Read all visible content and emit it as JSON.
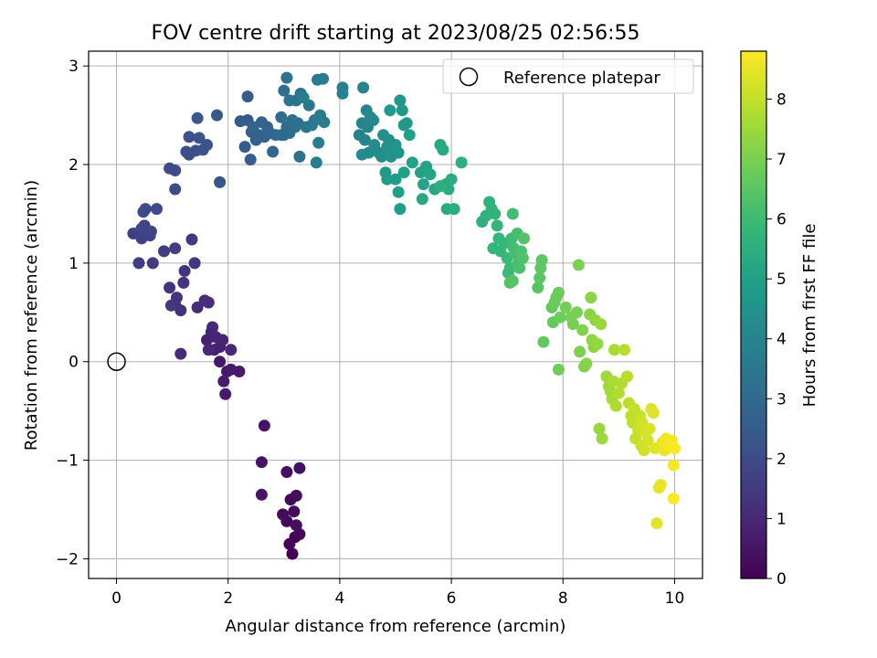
{
  "chart_data": {
    "type": "scatter",
    "title": "FOV centre drift starting at 2023/08/25 02:56:55",
    "xlabel": "Angular distance from reference (arcmin)",
    "ylabel": "Rotation from reference (arcmin)",
    "xlim": [
      -0.5,
      10.5
    ],
    "ylim": [
      -2.2,
      3.15
    ],
    "xticks": [
      0,
      2,
      4,
      6,
      8,
      10
    ],
    "yticks": [
      -2,
      -1,
      0,
      1,
      2,
      3
    ],
    "grid": true,
    "legend": {
      "position": "top-right",
      "entries": [
        "Reference platepar"
      ]
    },
    "reference_point": {
      "x": 0,
      "y": 0,
      "label": "Reference platepar"
    },
    "colorbar": {
      "label": "Hours from first FF file",
      "range": [
        0,
        8.8
      ],
      "ticks": [
        0,
        1,
        2,
        3,
        4,
        5,
        6,
        7,
        8
      ],
      "colormap": "viridis"
    },
    "series": [
      {
        "points": [
          [
            3.15,
            -1.95
          ],
          [
            3.2,
            -1.78
          ],
          [
            3.28,
            -1.75
          ],
          [
            3.1,
            -1.85
          ],
          [
            3.05,
            -1.62
          ],
          [
            3.18,
            -1.52
          ],
          [
            3.12,
            -1.4
          ],
          [
            3.22,
            -1.36
          ],
          [
            2.98,
            -1.55
          ],
          [
            3.22,
            -1.66
          ],
          [
            3.05,
            -1.12
          ],
          [
            3.28,
            -1.08
          ],
          [
            2.6,
            -1.02
          ],
          [
            2.65,
            -0.65
          ],
          [
            2.6,
            -1.35
          ],
          [
            1.85,
            0.0
          ],
          [
            1.98,
            -0.1
          ],
          [
            2.05,
            -0.08
          ],
          [
            2.2,
            -0.1
          ],
          [
            1.95,
            -0.33
          ],
          [
            1.92,
            -0.2
          ],
          [
            1.75,
            0.12
          ],
          [
            1.62,
            0.22
          ],
          [
            1.85,
            0.15
          ],
          [
            1.7,
            0.3
          ],
          [
            1.9,
            0.22
          ],
          [
            1.78,
            0.25
          ],
          [
            2.05,
            0.12
          ],
          [
            1.72,
            0.35
          ],
          [
            1.65,
            0.12
          ],
          [
            1.15,
            0.08
          ],
          [
            1.45,
            0.55
          ],
          [
            1.65,
            0.6
          ],
          [
            1.58,
            0.62
          ],
          [
            1.05,
            0.58
          ],
          [
            1.15,
            0.52
          ],
          [
            0.95,
            0.75
          ],
          [
            1.08,
            0.65
          ],
          [
            1.2,
            0.8
          ],
          [
            1.22,
            0.92
          ],
          [
            1.4,
            1.0
          ],
          [
            0.98,
            0.57
          ],
          [
            1.35,
            1.24
          ],
          [
            0.85,
            1.12
          ],
          [
            0.65,
            1.0
          ],
          [
            0.4,
            1.0
          ],
          [
            1.05,
            1.15
          ],
          [
            0.3,
            1.3
          ],
          [
            0.45,
            1.25
          ],
          [
            0.55,
            1.3
          ],
          [
            0.6,
            1.28
          ],
          [
            0.5,
            1.38
          ],
          [
            0.45,
            1.35
          ],
          [
            0.62,
            1.32
          ],
          [
            0.48,
            1.52
          ],
          [
            0.52,
            1.55
          ],
          [
            0.72,
            1.55
          ],
          [
            0.95,
            1.96
          ],
          [
            1.05,
            1.94
          ],
          [
            1.05,
            1.75
          ],
          [
            1.3,
            2.1
          ],
          [
            1.42,
            2.14
          ],
          [
            1.25,
            2.13
          ],
          [
            1.55,
            2.15
          ],
          [
            1.62,
            2.2
          ],
          [
            1.3,
            2.28
          ],
          [
            1.48,
            2.27
          ],
          [
            1.85,
            1.82
          ],
          [
            1.45,
            2.47
          ],
          [
            1.8,
            2.5
          ],
          [
            2.22,
            2.44
          ],
          [
            2.35,
            2.45
          ],
          [
            2.3,
            2.18
          ],
          [
            2.35,
            2.69
          ],
          [
            2.4,
            2.05
          ],
          [
            2.42,
            2.33
          ],
          [
            2.5,
            2.25
          ],
          [
            2.55,
            2.3
          ],
          [
            2.6,
            2.43
          ],
          [
            2.65,
            2.28
          ],
          [
            2.7,
            2.38
          ],
          [
            2.45,
            2.38
          ],
          [
            2.75,
            2.32
          ],
          [
            2.8,
            2.13
          ],
          [
            2.85,
            2.3
          ],
          [
            2.95,
            2.3
          ],
          [
            3.0,
            2.3
          ],
          [
            3.05,
            2.38
          ],
          [
            3.1,
            2.32
          ],
          [
            2.95,
            2.48
          ],
          [
            3.0,
            2.75
          ],
          [
            3.15,
            2.45
          ],
          [
            3.2,
            2.38
          ],
          [
            3.25,
            2.42
          ],
          [
            3.28,
            2.08
          ],
          [
            3.05,
            2.88
          ],
          [
            3.1,
            2.65
          ],
          [
            3.22,
            2.65
          ],
          [
            3.3,
            2.72
          ],
          [
            3.4,
            2.38
          ],
          [
            3.45,
            2.6
          ],
          [
            3.5,
            2.4
          ],
          [
            3.55,
            2.45
          ],
          [
            3.6,
            2.86
          ],
          [
            3.65,
            2.5
          ],
          [
            3.7,
            2.87
          ],
          [
            3.72,
            2.43
          ],
          [
            3.58,
            2.02
          ],
          [
            3.62,
            2.22
          ],
          [
            3.35,
            2.68
          ],
          [
            4.05,
            2.78
          ],
          [
            4.05,
            2.72
          ],
          [
            4.42,
            2.78
          ],
          [
            4.35,
            2.3
          ],
          [
            4.4,
            2.42
          ],
          [
            4.45,
            2.25
          ],
          [
            4.5,
            2.38
          ],
          [
            4.48,
            2.55
          ],
          [
            4.55,
            2.48
          ],
          [
            4.6,
            2.45
          ],
          [
            4.4,
            2.1
          ],
          [
            4.52,
            2.12
          ],
          [
            4.62,
            2.2
          ],
          [
            4.7,
            2.12
          ],
          [
            4.75,
            2.08
          ],
          [
            4.78,
            2.3
          ],
          [
            4.85,
            2.18
          ],
          [
            4.88,
            2.25
          ],
          [
            4.92,
            2.08
          ],
          [
            4.95,
            2.18
          ],
          [
            5.0,
            2.2
          ],
          [
            5.05,
            2.12
          ],
          [
            5.08,
            2.65
          ],
          [
            5.12,
            2.55
          ],
          [
            5.15,
            2.4
          ],
          [
            5.2,
            2.42
          ],
          [
            4.9,
            2.55
          ],
          [
            4.82,
            1.92
          ],
          [
            4.85,
            1.85
          ],
          [
            5.0,
            1.85
          ],
          [
            5.05,
            1.72
          ],
          [
            5.08,
            1.55
          ],
          [
            5.15,
            1.92
          ],
          [
            5.25,
            2.3
          ],
          [
            5.3,
            2.02
          ],
          [
            5.45,
            1.92
          ],
          [
            5.5,
            1.8
          ],
          [
            5.55,
            1.98
          ],
          [
            5.62,
            1.9
          ],
          [
            5.7,
            1.75
          ],
          [
            5.48,
            1.65
          ],
          [
            5.8,
            2.2
          ],
          [
            5.85,
            2.15
          ],
          [
            5.9,
            1.8
          ],
          [
            5.95,
            1.75
          ],
          [
            5.92,
            1.55
          ],
          [
            6.0,
            1.85
          ],
          [
            6.05,
            1.55
          ],
          [
            6.18,
            2.02
          ],
          [
            5.8,
            1.78
          ],
          [
            6.55,
            1.42
          ],
          [
            6.62,
            1.48
          ],
          [
            6.68,
            1.62
          ],
          [
            6.72,
            1.55
          ],
          [
            6.78,
            1.5
          ],
          [
            6.82,
            1.38
          ],
          [
            6.75,
            1.15
          ],
          [
            6.85,
            1.25
          ],
          [
            6.88,
            1.12
          ],
          [
            6.95,
            1.2
          ],
          [
            7.0,
            1.05
          ],
          [
            7.02,
            0.9
          ],
          [
            7.05,
            0.95
          ],
          [
            7.08,
            1.25
          ],
          [
            7.1,
            1.5
          ],
          [
            7.12,
            1.15
          ],
          [
            7.15,
            1.1
          ],
          [
            7.18,
            1.3
          ],
          [
            7.2,
            1.0
          ],
          [
            7.22,
            0.95
          ],
          [
            7.25,
            1.12
          ],
          [
            7.28,
            1.05
          ],
          [
            7.3,
            1.25
          ],
          [
            7.05,
            0.8
          ],
          [
            7.1,
            0.82
          ],
          [
            7.55,
            0.75
          ],
          [
            7.58,
            0.85
          ],
          [
            7.6,
            0.95
          ],
          [
            7.62,
            1.03
          ],
          [
            7.65,
            0.2
          ],
          [
            7.8,
            0.55
          ],
          [
            7.82,
            0.4
          ],
          [
            7.85,
            0.6
          ],
          [
            7.88,
            0.65
          ],
          [
            7.92,
            0.7
          ],
          [
            7.95,
            0.45
          ],
          [
            7.92,
            -0.08
          ],
          [
            8.05,
            0.55
          ],
          [
            8.15,
            0.45
          ],
          [
            8.18,
            0.38
          ],
          [
            8.25,
            0.5
          ],
          [
            8.28,
            0.98
          ],
          [
            8.3,
            0.1
          ],
          [
            8.35,
            0.32
          ],
          [
            8.38,
            -0.05
          ],
          [
            8.42,
            -0.02
          ],
          [
            8.48,
            0.48
          ],
          [
            8.5,
            0.65
          ],
          [
            8.52,
            0.22
          ],
          [
            8.55,
            0.15
          ],
          [
            8.58,
            0.42
          ],
          [
            8.62,
            0.18
          ],
          [
            8.65,
            -0.68
          ],
          [
            8.68,
            0.38
          ],
          [
            8.7,
            -0.78
          ],
          [
            8.78,
            -0.15
          ],
          [
            8.82,
            -0.25
          ],
          [
            8.85,
            -0.3
          ],
          [
            8.88,
            -0.38
          ],
          [
            8.9,
            -0.2
          ],
          [
            8.92,
            0.12
          ],
          [
            8.95,
            -0.45
          ],
          [
            9.0,
            -0.32
          ],
          [
            9.05,
            -0.22
          ],
          [
            9.1,
            0.12
          ],
          [
            9.15,
            -0.15
          ],
          [
            9.18,
            -0.42
          ],
          [
            9.22,
            -0.55
          ],
          [
            9.25,
            -0.62
          ],
          [
            9.28,
            -0.48
          ],
          [
            9.3,
            -0.78
          ],
          [
            9.35,
            -0.7
          ],
          [
            9.38,
            -0.55
          ],
          [
            9.4,
            -0.85
          ],
          [
            9.42,
            -0.62
          ],
          [
            9.45,
            -0.9
          ],
          [
            9.48,
            -0.72
          ],
          [
            9.52,
            -0.8
          ],
          [
            9.55,
            -0.68
          ],
          [
            9.58,
            -0.48
          ],
          [
            9.62,
            -0.52
          ],
          [
            9.65,
            -0.88
          ],
          [
            9.68,
            -1.64
          ],
          [
            9.72,
            -1.28
          ],
          [
            9.75,
            -1.25
          ],
          [
            9.78,
            -0.82
          ],
          [
            9.82,
            -0.9
          ],
          [
            9.85,
            -0.78
          ],
          [
            9.9,
            -0.85
          ],
          [
            9.95,
            -0.8
          ],
          [
            9.98,
            -1.05
          ],
          [
            9.98,
            -1.39
          ],
          [
            10.0,
            -0.88
          ]
        ]
      }
    ]
  }
}
